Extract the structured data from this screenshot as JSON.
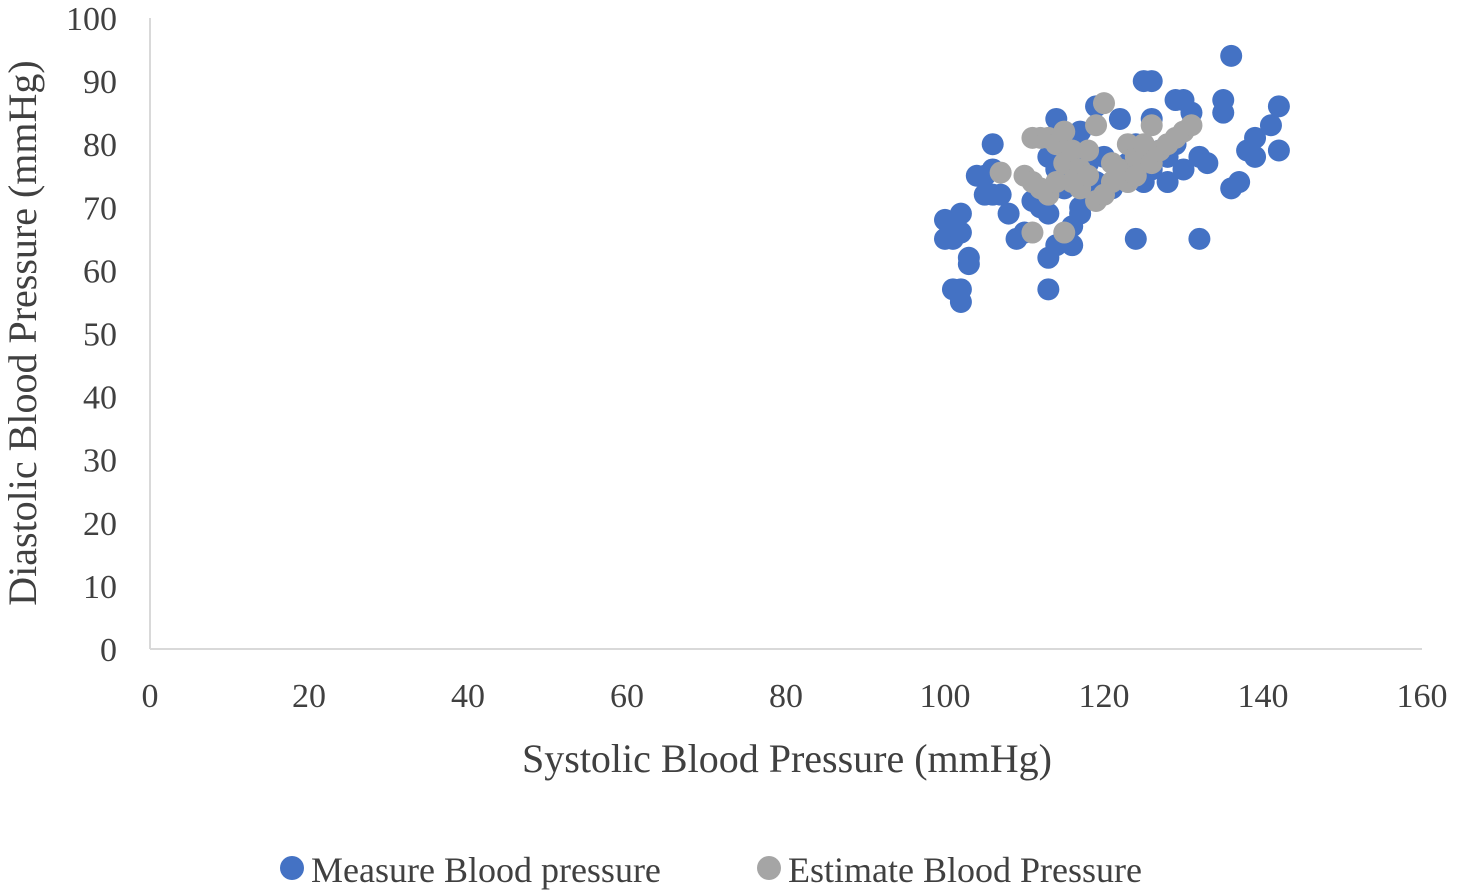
{
  "chart_data": {
    "type": "scatter",
    "title": "",
    "xlabel": "Systolic Blood Pressure (mmHg)",
    "ylabel": "Diastolic Blood Pressure (mmHg)",
    "xlim": [
      0,
      160
    ],
    "ylim": [
      0,
      100
    ],
    "xticks": [
      0,
      20,
      40,
      60,
      80,
      100,
      120,
      140,
      160
    ],
    "yticks": [
      0,
      10,
      20,
      30,
      40,
      50,
      60,
      70,
      80,
      90,
      100
    ],
    "xtick_labels": [
      "0",
      "20",
      "40",
      "60",
      "80",
      "100",
      "120",
      "140",
      "160"
    ],
    "ytick_labels": [
      "0",
      "10",
      "20",
      "30",
      "40",
      "50",
      "60",
      "70",
      "80",
      "90",
      "100"
    ],
    "grid": false,
    "legend_position": "bottom",
    "series": [
      {
        "name": "Measure Blood pressure",
        "color": "#4472c4",
        "points": [
          [
            100,
            68
          ],
          [
            100,
            65
          ],
          [
            101,
            65
          ],
          [
            101,
            67
          ],
          [
            102,
            69
          ],
          [
            102,
            66
          ],
          [
            101,
            57
          ],
          [
            102,
            57
          ],
          [
            102,
            55
          ],
          [
            103,
            62
          ],
          [
            103,
            61
          ],
          [
            104,
            75
          ],
          [
            105,
            72
          ],
          [
            105,
            75
          ],
          [
            106,
            80
          ],
          [
            106,
            76
          ],
          [
            106,
            72
          ],
          [
            107,
            72
          ],
          [
            108,
            69
          ],
          [
            109,
            65
          ],
          [
            110,
            66
          ],
          [
            111,
            71
          ],
          [
            112,
            70
          ],
          [
            113,
            62
          ],
          [
            113,
            57
          ],
          [
            113,
            69
          ],
          [
            113,
            78
          ],
          [
            114,
            84
          ],
          [
            114,
            76
          ],
          [
            114,
            64
          ],
          [
            115,
            75
          ],
          [
            115,
            73
          ],
          [
            116,
            64
          ],
          [
            116,
            67
          ],
          [
            116,
            80
          ],
          [
            117,
            70
          ],
          [
            117,
            69
          ],
          [
            117,
            82
          ],
          [
            118,
            77
          ],
          [
            119,
            86
          ],
          [
            119,
            74
          ],
          [
            120,
            78
          ],
          [
            121,
            73
          ],
          [
            122,
            84
          ],
          [
            123,
            77
          ],
          [
            124,
            65
          ],
          [
            124,
            80
          ],
          [
            125,
            74
          ],
          [
            125,
            90
          ],
          [
            126,
            90
          ],
          [
            126,
            84
          ],
          [
            126,
            76
          ],
          [
            127,
            79
          ],
          [
            128,
            74
          ],
          [
            128,
            78
          ],
          [
            129,
            87
          ],
          [
            129,
            80
          ],
          [
            130,
            87
          ],
          [
            130,
            76
          ],
          [
            131,
            85
          ],
          [
            132,
            78
          ],
          [
            132,
            65
          ],
          [
            133,
            77
          ],
          [
            135,
            87
          ],
          [
            135,
            85
          ],
          [
            136,
            94
          ],
          [
            136,
            73
          ],
          [
            137,
            74
          ],
          [
            138,
            79
          ],
          [
            139,
            78
          ],
          [
            139,
            81
          ],
          [
            141,
            83
          ],
          [
            142,
            86
          ],
          [
            142,
            79
          ]
        ]
      },
      {
        "name": "Estimate Blood Pressure",
        "color": "#a5a5a5",
        "points": [
          [
            107,
            75.5
          ],
          [
            110,
            75
          ],
          [
            111,
            74
          ],
          [
            111,
            81
          ],
          [
            111,
            66
          ],
          [
            112,
            81
          ],
          [
            112,
            73
          ],
          [
            113,
            72
          ],
          [
            113,
            81
          ],
          [
            114,
            74
          ],
          [
            114,
            80
          ],
          [
            115,
            82
          ],
          [
            115,
            66
          ],
          [
            115,
            77
          ],
          [
            116,
            79
          ],
          [
            116,
            74
          ],
          [
            117,
            76
          ],
          [
            117,
            73
          ],
          [
            118,
            79
          ],
          [
            118,
            75
          ],
          [
            119,
            83
          ],
          [
            119,
            71
          ],
          [
            120,
            86.5
          ],
          [
            120,
            72
          ],
          [
            121,
            77
          ],
          [
            121,
            74
          ],
          [
            122,
            76
          ],
          [
            123,
            80
          ],
          [
            123,
            74
          ],
          [
            124,
            78
          ],
          [
            124,
            75
          ],
          [
            125,
            80
          ],
          [
            126,
            83
          ],
          [
            126,
            77
          ],
          [
            127,
            79
          ],
          [
            128,
            80
          ],
          [
            129,
            81
          ],
          [
            130,
            82
          ],
          [
            131,
            83
          ]
        ]
      }
    ]
  }
}
